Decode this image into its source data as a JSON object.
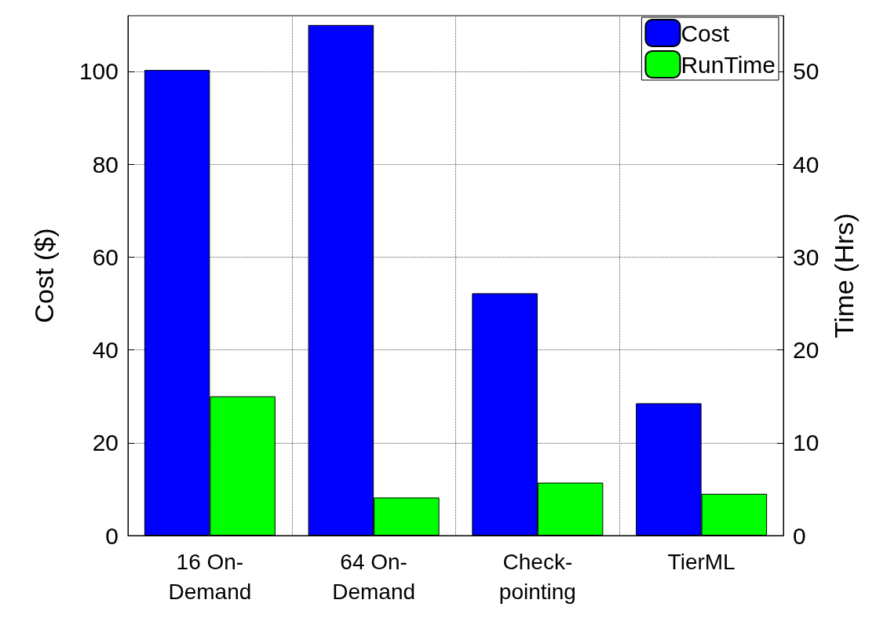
{
  "chart_data": {
    "type": "bar",
    "ylabel": "Cost ($)",
    "y2label": "Time (Hrs)",
    "categories": [
      "16 On-\nDemand",
      "64 On-\nDemand",
      "Check-\npointing",
      "TierML"
    ],
    "series": [
      {
        "name": "Cost",
        "color": "#0000ff",
        "values": [
          100.3,
          110,
          52.2,
          28.5
        ]
      },
      {
        "name": "RunTime",
        "color": "#00ff00",
        "values": [
          15,
          4.1,
          5.7,
          4.5
        ],
        "axis": "y2"
      }
    ],
    "ylim": [
      0,
      112
    ],
    "yticks": [
      0,
      20,
      40,
      60,
      80,
      100
    ],
    "y2lim": [
      0,
      56
    ],
    "y2ticks": [
      0,
      10,
      20,
      30,
      40,
      50
    ],
    "grid": true,
    "legend": "top right"
  }
}
